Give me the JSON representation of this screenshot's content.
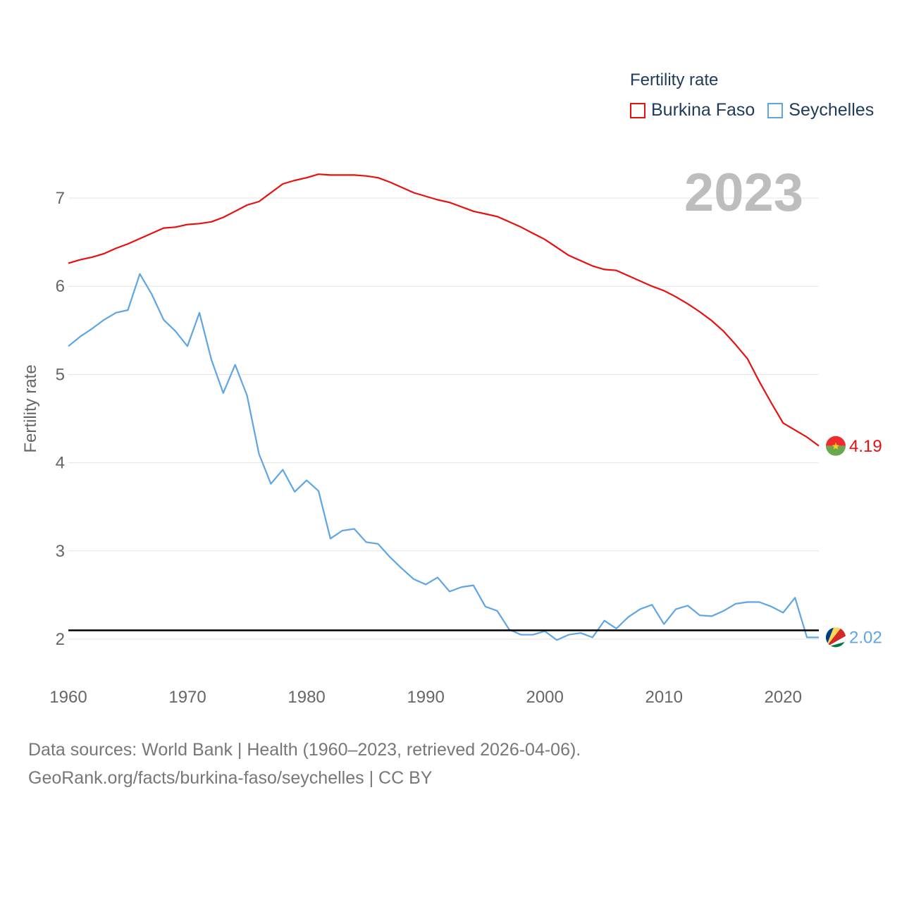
{
  "legend": {
    "title": "Fertility rate",
    "items": [
      {
        "label": "Burkina Faso",
        "color": "#e8100f"
      },
      {
        "label": "Seychelles",
        "color": "#5ea5e6"
      }
    ]
  },
  "year_label": "2023",
  "source": {
    "line1": "Data sources: World Bank | Health (1960–2023, retrieved 2026-04-06).",
    "line2": "GeoRank.org/facts/burkina-faso/seychelles | CC BY"
  },
  "chart_data": {
    "type": "line",
    "ylabel": "Fertility rate",
    "xlabel": "",
    "xlim": [
      1960,
      2023
    ],
    "ylim": [
      1.5,
      7.5
    ],
    "x_ticks": [
      1960,
      1970,
      1980,
      1990,
      2000,
      2010,
      2020
    ],
    "y_ticks": [
      2,
      3,
      4,
      5,
      6,
      7
    ],
    "reference_line": 2.1,
    "series": [
      {
        "name": "Burkina Faso",
        "color": "#e8100f",
        "end_label": "4.19",
        "x": [
          1960,
          1961,
          1962,
          1963,
          1964,
          1965,
          1966,
          1967,
          1968,
          1969,
          1970,
          1971,
          1972,
          1973,
          1974,
          1975,
          1976,
          1977,
          1978,
          1979,
          1980,
          1981,
          1982,
          1983,
          1984,
          1985,
          1986,
          1987,
          1988,
          1989,
          1990,
          1991,
          1992,
          1993,
          1994,
          1995,
          1996,
          1997,
          1998,
          1999,
          2000,
          2001,
          2002,
          2003,
          2004,
          2005,
          2006,
          2007,
          2008,
          2009,
          2010,
          2011,
          2012,
          2013,
          2014,
          2015,
          2016,
          2017,
          2018,
          2019,
          2020,
          2021,
          2022,
          2023
        ],
        "values": [
          6.26,
          6.3,
          6.33,
          6.37,
          6.43,
          6.48,
          6.54,
          6.6,
          6.66,
          6.67,
          6.7,
          6.71,
          6.73,
          6.78,
          6.85,
          6.92,
          6.96,
          7.06,
          7.16,
          7.2,
          7.23,
          7.27,
          7.26,
          7.26,
          7.26,
          7.25,
          7.23,
          7.18,
          7.12,
          7.06,
          7.02,
          6.98,
          6.95,
          6.9,
          6.85,
          6.82,
          6.79,
          6.73,
          6.67,
          6.6,
          6.53,
          6.44,
          6.35,
          6.29,
          6.23,
          6.19,
          6.18,
          6.12,
          6.06,
          6.0,
          5.95,
          5.88,
          5.8,
          5.71,
          5.61,
          5.49,
          5.34,
          5.18,
          4.92,
          4.68,
          4.45,
          4.37,
          4.29,
          4.19
        ]
      },
      {
        "name": "Seychelles",
        "color": "#5ea5e6",
        "end_label": "2.02",
        "x": [
          1960,
          1961,
          1962,
          1963,
          1964,
          1965,
          1966,
          1967,
          1968,
          1969,
          1970,
          1971,
          1972,
          1973,
          1974,
          1975,
          1976,
          1977,
          1978,
          1979,
          1980,
          1981,
          1982,
          1983,
          1984,
          1985,
          1986,
          1987,
          1988,
          1989,
          1990,
          1991,
          1992,
          1993,
          1994,
          1995,
          1996,
          1997,
          1998,
          1999,
          2000,
          2001,
          2002,
          2003,
          2004,
          2005,
          2006,
          2007,
          2008,
          2009,
          2010,
          2011,
          2012,
          2013,
          2014,
          2015,
          2016,
          2017,
          2018,
          2019,
          2020,
          2021,
          2022,
          2023
        ],
        "values": [
          5.32,
          5.43,
          5.52,
          5.62,
          5.7,
          5.73,
          6.14,
          5.91,
          5.62,
          5.49,
          5.32,
          5.7,
          5.17,
          4.79,
          5.11,
          4.76,
          4.1,
          3.76,
          3.92,
          3.67,
          3.8,
          3.68,
          3.14,
          3.23,
          3.25,
          3.1,
          3.08,
          2.93,
          2.8,
          2.68,
          2.62,
          2.7,
          2.54,
          2.59,
          2.61,
          2.37,
          2.32,
          2.11,
          2.05,
          2.05,
          2.09,
          1.99,
          2.05,
          2.07,
          2.02,
          2.21,
          2.12,
          2.25,
          2.34,
          2.39,
          2.17,
          2.34,
          2.38,
          2.27,
          2.26,
          2.32,
          2.4,
          2.42,
          2.42,
          2.37,
          2.3,
          2.47,
          2.02,
          2.02
        ]
      }
    ]
  }
}
